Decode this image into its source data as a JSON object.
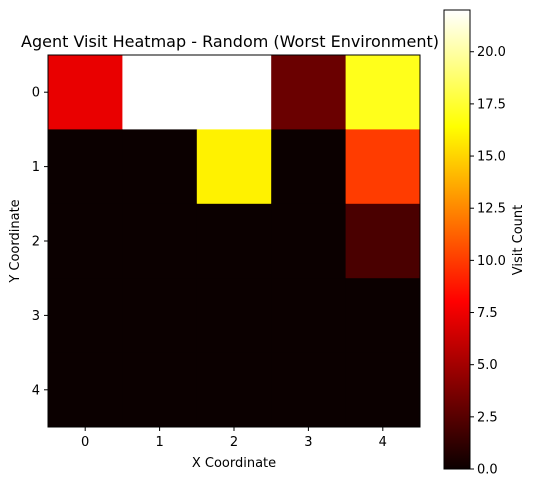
{
  "chart_data": {
    "type": "heatmap",
    "title": "Agent Visit Heatmap - Random (Worst Environment)",
    "xlabel": "X Coordinate",
    "ylabel": "Y Coordinate",
    "x_ticks": [
      "0",
      "1",
      "2",
      "3",
      "4"
    ],
    "y_ticks": [
      "0",
      "1",
      "2",
      "3",
      "4"
    ],
    "grid": false,
    "colormap": "hot",
    "colorbar": {
      "label": "Visit Count",
      "range": [
        0,
        22
      ],
      "ticks": [
        "0.0",
        "2.5",
        "5.0",
        "7.5",
        "10.0",
        "12.5",
        "15.0",
        "17.5",
        "20.0"
      ],
      "tick_values": [
        0,
        2.5,
        5,
        7.5,
        10,
        12.5,
        15,
        17.5,
        20
      ]
    },
    "values": [
      [
        7,
        22,
        22,
        3,
        17
      ],
      [
        0,
        0,
        16,
        0,
        10
      ],
      [
        0,
        0,
        0,
        0,
        2
      ],
      [
        0,
        0,
        0,
        0,
        0
      ],
      [
        0,
        0,
        0,
        0,
        0
      ]
    ]
  }
}
